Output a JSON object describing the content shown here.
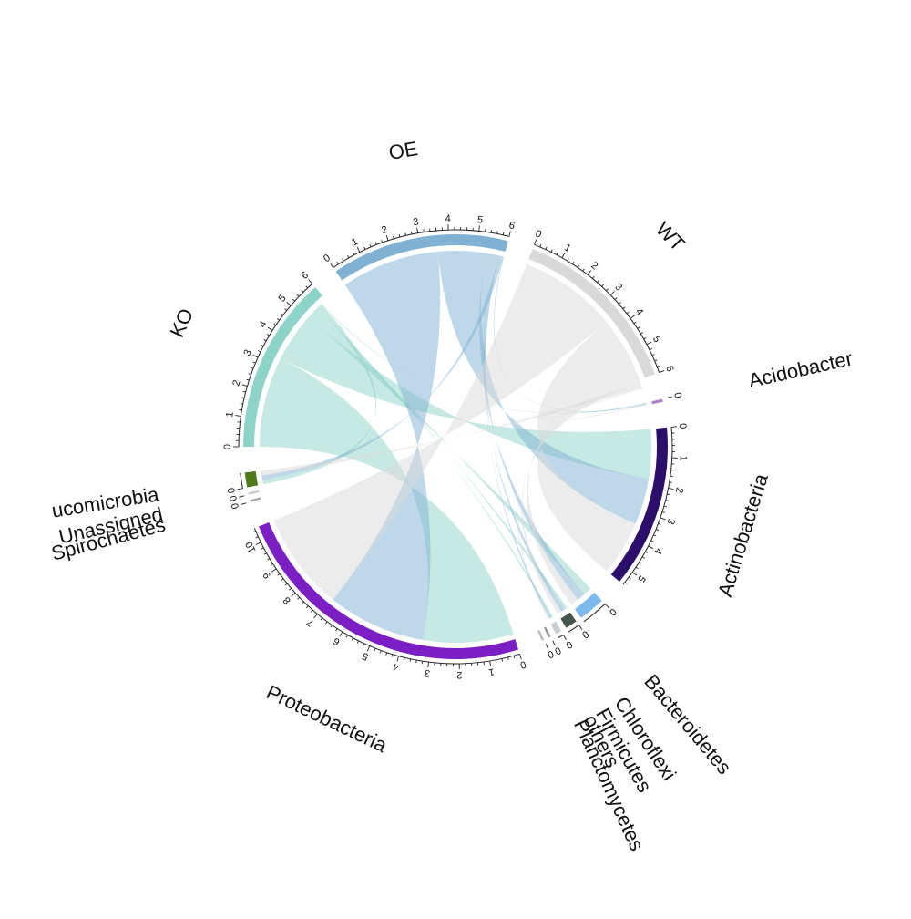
{
  "chart_data": {
    "type": "chord",
    "sectors": [
      {
        "name": "KO",
        "max": 6,
        "tick_labels": [
          "0",
          "1",
          "2",
          "3",
          "4",
          "5",
          "6"
        ],
        "color": "#8dd3c7"
      },
      {
        "name": "OE",
        "max": 6,
        "tick_labels": [
          "0",
          "1",
          "2",
          "3",
          "4",
          "5",
          "6"
        ],
        "color": "#80b1d3"
      },
      {
        "name": "WT",
        "max": 6,
        "tick_labels": [
          "0",
          "1",
          "2",
          "3",
          "4",
          "5",
          "6"
        ],
        "color": "#d9d9d9"
      },
      {
        "name": "Acidobacteria",
        "display_name": "Acidobacter",
        "max": 0.1,
        "tick_labels": [
          "0"
        ],
        "color": "#b27fc4"
      },
      {
        "name": "Actinobacteria",
        "max": 5.5,
        "tick_labels": [
          "0",
          "1",
          "2",
          "3",
          "4",
          "5"
        ],
        "color": "#2b0f6b"
      },
      {
        "name": "Bacteroidetes",
        "max": 0.9,
        "tick_labels": [
          "0"
        ],
        "color": "#7eb9ee"
      },
      {
        "name": "Chloroflexi",
        "max": 0.4,
        "tick_labels": [
          "0"
        ],
        "color": "#46544b"
      },
      {
        "name": "Firmicutes",
        "max": 0.2,
        "tick_labels": [
          "0"
        ],
        "color": "#c7cdd0"
      },
      {
        "name": "others",
        "max": 0.05,
        "tick_labels": [
          "0"
        ],
        "color": "#999999"
      },
      {
        "name": "Planctomycetes",
        "max": 0.05,
        "tick_labels": [
          "0"
        ],
        "color": "#bbbbbb"
      },
      {
        "name": "Proteobacteria",
        "max": 10.5,
        "tick_labels": [
          "0",
          "1",
          "2",
          "3",
          "4",
          "5",
          "6",
          "7",
          "8",
          "9",
          "10"
        ],
        "color": "#7b1fc4"
      },
      {
        "name": "Spirochaetes",
        "max": 0.05,
        "tick_labels": [
          "0"
        ],
        "color": "#aaaaaa"
      },
      {
        "name": "Unassigned",
        "max": 0.05,
        "tick_labels": [
          "0"
        ],
        "color": "#cccccc"
      },
      {
        "name": "Verrucomicrobia",
        "display_name": "ucomicrobia",
        "max": 0.5,
        "tick_labels": [
          "0"
        ],
        "color": "#4e7a1a"
      }
    ],
    "links": [
      {
        "from": "KO",
        "to": "Proteobacteria",
        "value": 3.3
      },
      {
        "from": "KO",
        "to": "Actinobacteria",
        "value": 1.8
      },
      {
        "from": "KO",
        "to": "Bacteroidetes",
        "value": 0.3
      },
      {
        "from": "KO",
        "to": "Chloroflexi",
        "value": 0.12
      },
      {
        "from": "KO",
        "to": "Firmicutes",
        "value": 0.07
      },
      {
        "from": "KO",
        "to": "Verrucomicrobia",
        "value": 0.15
      },
      {
        "from": "KO",
        "to": "Acidobacteria",
        "value": 0.03
      },
      {
        "from": "OE",
        "to": "Proteobacteria",
        "value": 3.6
      },
      {
        "from": "OE",
        "to": "Actinobacteria",
        "value": 1.7
      },
      {
        "from": "OE",
        "to": "Bacteroidetes",
        "value": 0.3
      },
      {
        "from": "OE",
        "to": "Chloroflexi",
        "value": 0.13
      },
      {
        "from": "OE",
        "to": "Firmicutes",
        "value": 0.07
      },
      {
        "from": "OE",
        "to": "Verrucomicrobia",
        "value": 0.17
      },
      {
        "from": "OE",
        "to": "Acidobacteria",
        "value": 0.03
      },
      {
        "from": "WT",
        "to": "Proteobacteria",
        "value": 3.6
      },
      {
        "from": "WT",
        "to": "Actinobacteria",
        "value": 2.0
      },
      {
        "from": "WT",
        "to": "Bacteroidetes",
        "value": 0.3
      },
      {
        "from": "WT",
        "to": "Chloroflexi",
        "value": 0.15
      },
      {
        "from": "WT",
        "to": "Firmicutes",
        "value": 0.06
      },
      {
        "from": "WT",
        "to": "Verrucomicrobia",
        "value": 0.18
      },
      {
        "from": "WT",
        "to": "Acidobacteria",
        "value": 0.04
      }
    ],
    "title": "",
    "grid": false,
    "legend": "none"
  }
}
